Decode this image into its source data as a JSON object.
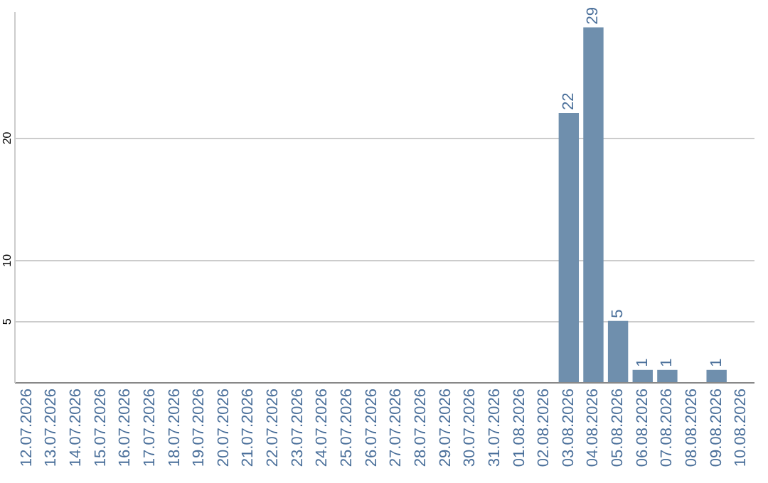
{
  "chart_data": {
    "type": "bar",
    "categories": [
      "12.07.2026",
      "13.07.2026",
      "14.07.2026",
      "15.07.2026",
      "16.07.2026",
      "17.07.2026",
      "18.07.2026",
      "19.07.2026",
      "20.07.2026",
      "21.07.2026",
      "22.07.2026",
      "23.07.2026",
      "24.07.2026",
      "25.07.2026",
      "26.07.2026",
      "27.07.2026",
      "28.07.2026",
      "29.07.2026",
      "30.07.2026",
      "31.07.2026",
      "01.08.2026",
      "02.08.2026",
      "03.08.2026",
      "04.08.2026",
      "05.08.2026",
      "06.08.2026",
      "07.08.2026",
      "08.08.2026",
      "09.08.2026",
      "10.08.2026"
    ],
    "values": [
      0,
      0,
      0,
      0,
      0,
      0,
      0,
      0,
      0,
      0,
      0,
      0,
      0,
      0,
      0,
      0,
      0,
      0,
      0,
      0,
      0,
      0,
      22,
      29,
      5,
      1,
      1,
      0,
      1,
      0
    ],
    "value_labels": [
      null,
      null,
      null,
      null,
      null,
      null,
      null,
      null,
      null,
      null,
      null,
      null,
      null,
      null,
      null,
      null,
      null,
      null,
      null,
      null,
      null,
      null,
      "22",
      "29",
      "5",
      "1",
      "1",
      null,
      "1",
      null
    ],
    "color": "#6f8fad",
    "ylim": [
      0,
      30.3
    ],
    "yticks": [
      5,
      10,
      20
    ],
    "grid": "y"
  }
}
